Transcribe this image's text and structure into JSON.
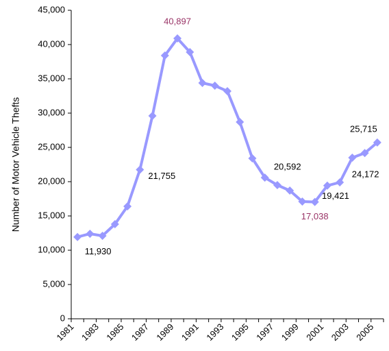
{
  "chart_data": {
    "type": "line",
    "y_label": "Number of Motor Vehicle Thefts",
    "categories": [
      "1981",
      null,
      "1983",
      null,
      "1985",
      null,
      "1987",
      null,
      "1989",
      null,
      "1991",
      null,
      "1993",
      null,
      "1995",
      null,
      "1997",
      null,
      "1999",
      null,
      "2001",
      null,
      "2003",
      null,
      "2005"
    ],
    "series": [
      {
        "color": "#9999ff",
        "values": [
          11930,
          12400,
          12100,
          13800,
          16400,
          21755,
          29600,
          38400,
          40897,
          38900,
          34400,
          34000,
          33200,
          28700,
          23400,
          20592,
          19500,
          18700,
          17100,
          17038,
          19421,
          19900,
          23500,
          24172,
          25715
        ],
        "value_labels": [
          "11,930",
          null,
          null,
          null,
          null,
          "21,755",
          null,
          null,
          "40,897",
          null,
          null,
          null,
          null,
          null,
          null,
          "20,592",
          null,
          null,
          null,
          "17,038",
          "19,421",
          null,
          null,
          "24,172",
          "25,715"
        ],
        "value_label_colors": [
          "#000000",
          null,
          null,
          null,
          null,
          "#000000",
          null,
          null,
          "#993366",
          null,
          null,
          null,
          null,
          null,
          null,
          "#000000",
          null,
          null,
          null,
          "#993366",
          "#000000",
          null,
          null,
          "#000000",
          "#000000"
        ]
      }
    ],
    "ylim": [
      0,
      45000
    ],
    "yticks": [
      0,
      {
        "value": 5000,
        "label": "5,000"
      },
      {
        "value": 10000,
        "label": "10,000"
      },
      {
        "value": 15000,
        "label": "15,000"
      },
      {
        "value": 20000,
        "label": "20,000"
      },
      {
        "value": 25000,
        "label": "25,000"
      },
      {
        "value": 30000,
        "label": "30,000"
      },
      {
        "value": 35000,
        "label": "35,000"
      },
      {
        "value": 40000,
        "label": "40,000"
      },
      {
        "value": 45000,
        "label": "45,000"
      }
    ],
    "grid": false
  }
}
